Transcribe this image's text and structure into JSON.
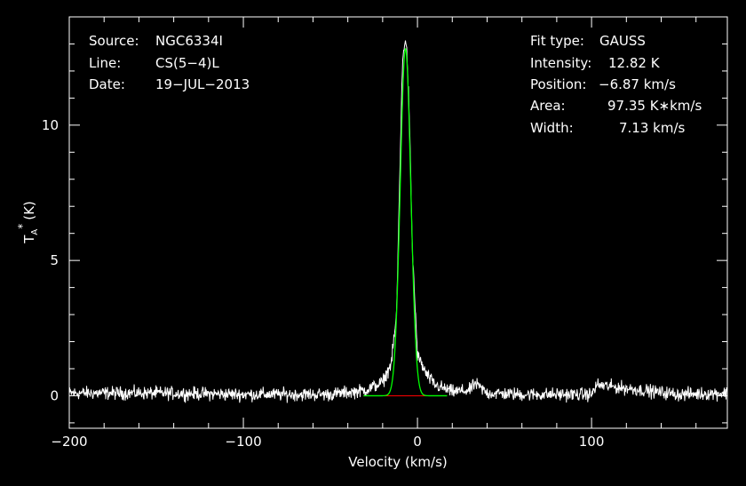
{
  "chart_data": {
    "type": "line",
    "title": "",
    "xlabel": "Velocity (km/s)",
    "ylabel": "T",
    "ylabel_sub": "A",
    "ylabel_sup": "*",
    "ylabel_unit": "(K)",
    "xlim": [
      -200,
      178
    ],
    "ylim": [
      -1.2,
      14
    ],
    "xticks": [
      -200,
      -100,
      0,
      100
    ],
    "xtick_labels": [
      "−200",
      "−100",
      "0",
      "100"
    ],
    "yticks": [
      0,
      5,
      10
    ],
    "ytick_labels": [
      "0",
      "5",
      "10"
    ],
    "grid": false,
    "legend": "none",
    "series": [
      {
        "role": "observed spectrum",
        "color": "#ffffff",
        "noise_rms": 0.15,
        "x": [
          -200,
          -150,
          -100,
          -50,
          -30,
          -20,
          -15,
          -12,
          -10,
          -9,
          -8,
          -7,
          -6,
          -5,
          -4,
          -3,
          0,
          5,
          10,
          20,
          30,
          33,
          40,
          60,
          100,
          103,
          150,
          178
        ],
        "y": [
          0.1,
          0.1,
          0.05,
          0.05,
          0.2,
          0.5,
          1.2,
          3.0,
          8.5,
          11.5,
          12.8,
          13.2,
          12.6,
          11.0,
          8.5,
          5.5,
          1.5,
          0.8,
          0.4,
          0.15,
          0.2,
          0.45,
          0.1,
          0.05,
          0.05,
          0.4,
          0.05,
          0.1
        ]
      },
      {
        "role": "gaussian fit",
        "color": "#00ff00",
        "fit": {
          "amplitude": 12.82,
          "center": -6.87,
          "fwhm": 7.13
        }
      },
      {
        "role": "baseline",
        "color": "#ff0000",
        "x": [
          -31,
          17
        ],
        "y": [
          0,
          0
        ]
      }
    ]
  },
  "info_left": [
    {
      "label": "Source:",
      "value": "NGC6334I"
    },
    {
      "label": "Line:",
      "value": "CS(5−4)L"
    },
    {
      "label": "Date:",
      "value": "19−JUL−2013"
    }
  ],
  "info_right": [
    {
      "label": "Fit type:",
      "value": "GAUSS"
    },
    {
      "label": "Intensity:",
      "value": "12.82 K"
    },
    {
      "label": "Position:",
      "value": "−6.87 km/s"
    },
    {
      "label": "Area:",
      "value": "97.35 K∗km/s"
    },
    {
      "label": "Width:",
      "value": "7.13 km/s"
    }
  ]
}
